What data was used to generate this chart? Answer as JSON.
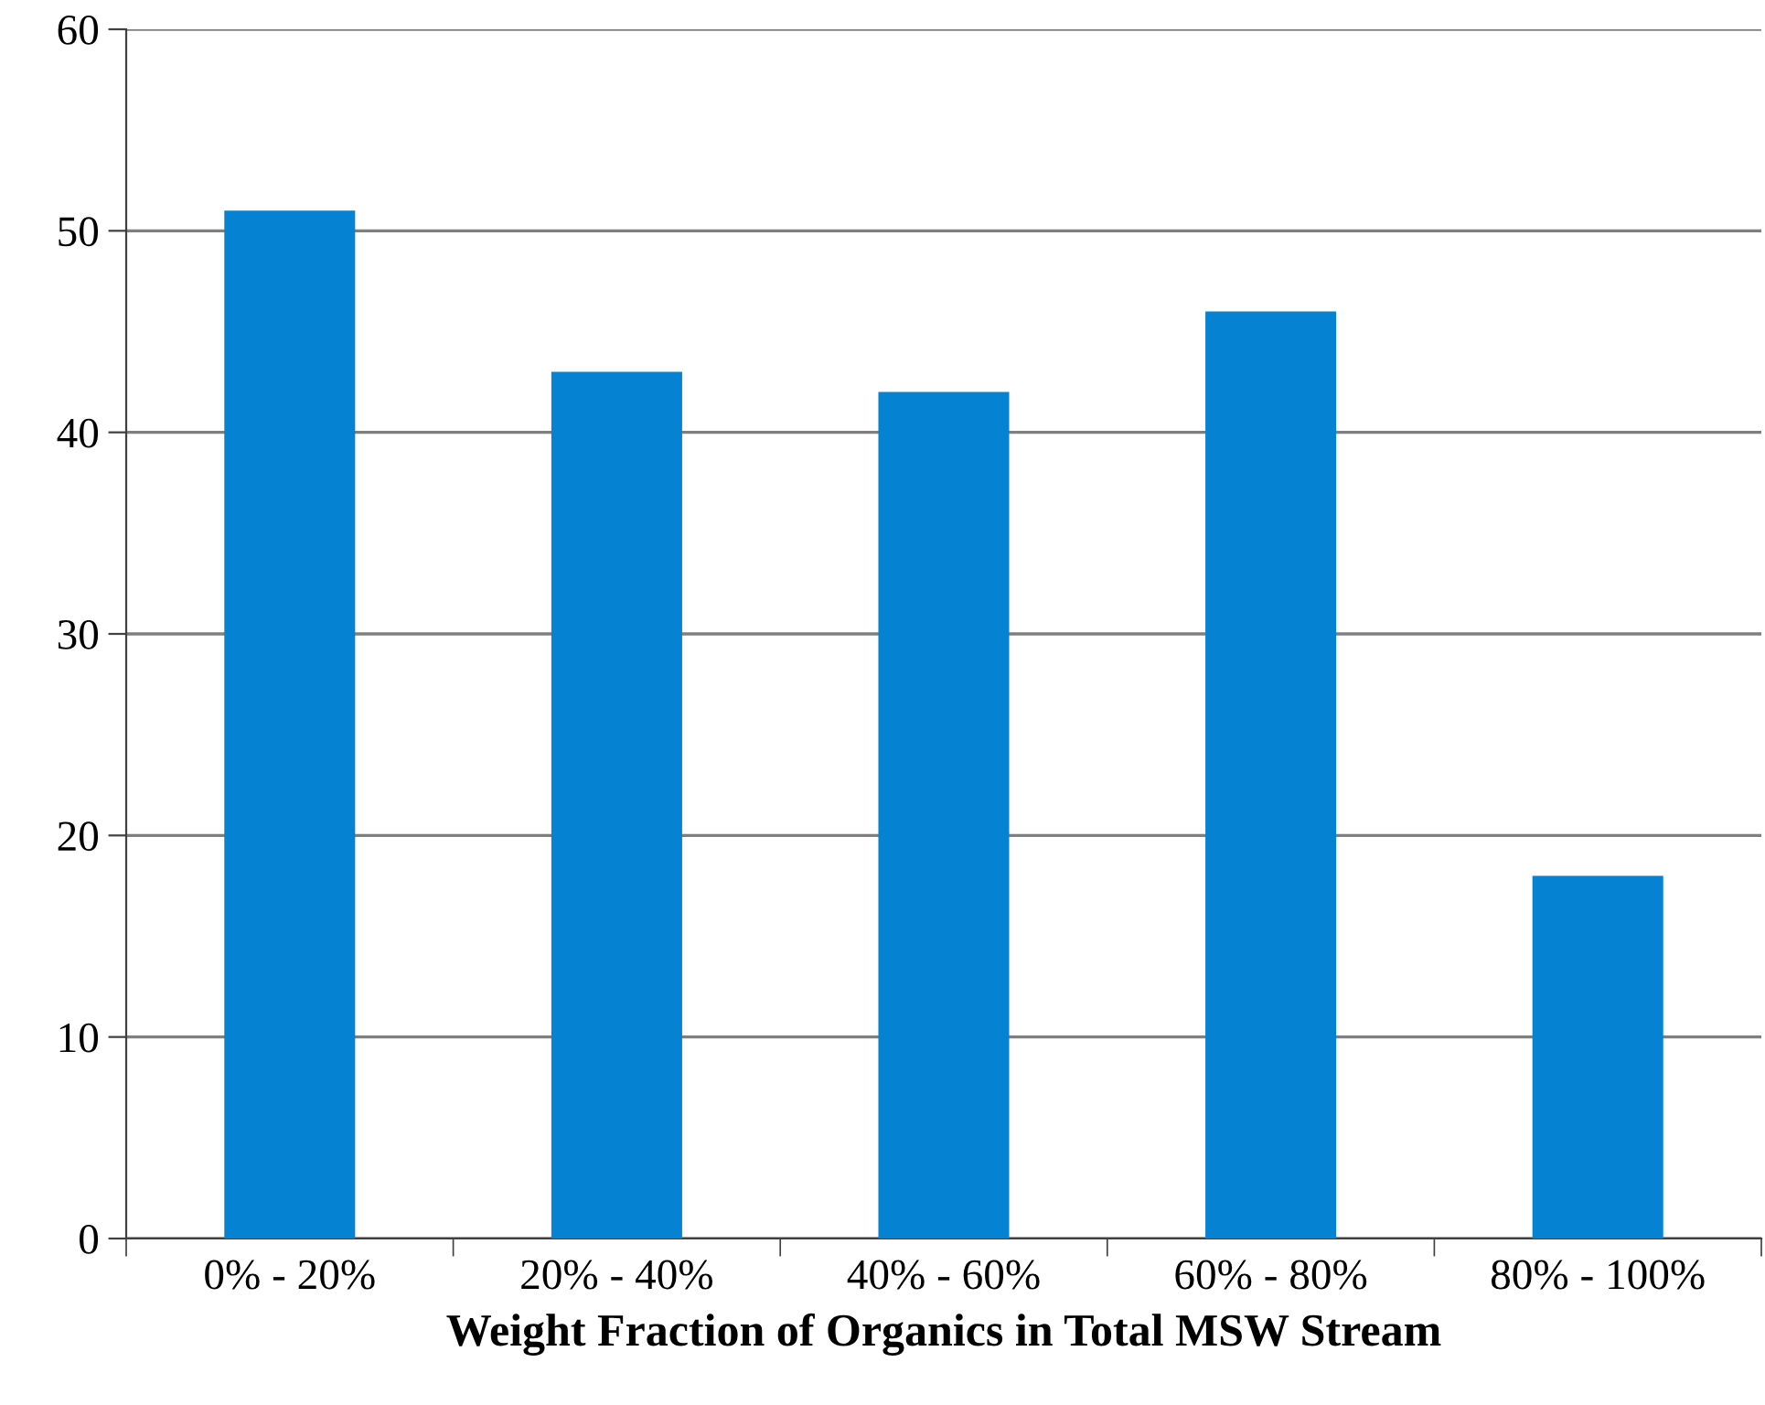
{
  "chart_data": {
    "type": "bar",
    "xlabel": "Weight Fraction of Organics in Total MSW Stream",
    "categories": [
      "0% - 20%",
      "20% - 40%",
      "40% - 60%",
      "60% - 80%",
      "80% - 100%"
    ],
    "values": [
      51,
      43,
      42,
      46,
      18
    ],
    "color": "#0583d2",
    "ylim": [
      0,
      60
    ],
    "yticks": [
      0,
      10,
      20,
      30,
      40,
      50,
      60
    ],
    "grid": "y"
  }
}
